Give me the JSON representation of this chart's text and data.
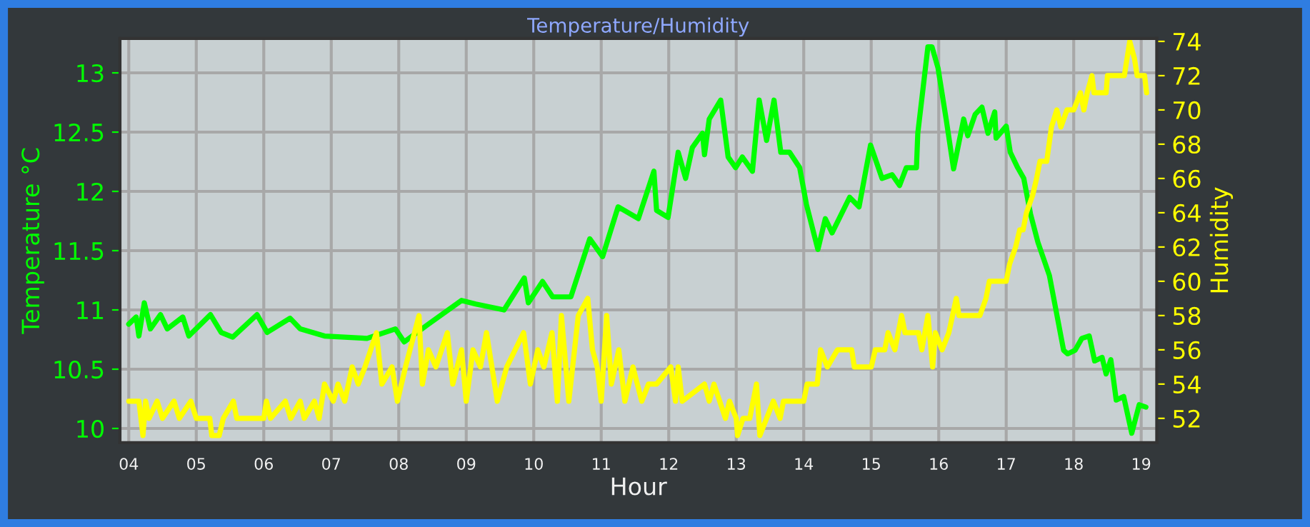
{
  "chart_data": {
    "type": "line",
    "title": "Temperature/Humidity",
    "xlabel": "Hour",
    "ylabel": "Temperature °C",
    "y2label": "Humidity",
    "xlim": [
      3.87,
      19.23
    ],
    "ylim": [
      9.88,
      13.29
    ],
    "y2lim": [
      50.58,
      74.17
    ],
    "xticks": [
      {
        "value": 4,
        "label": "04"
      },
      {
        "value": 5,
        "label": "05"
      },
      {
        "value": 6,
        "label": "06"
      },
      {
        "value": 7,
        "label": "07"
      },
      {
        "value": 8,
        "label": "08"
      },
      {
        "value": 9,
        "label": "09"
      },
      {
        "value": 10,
        "label": "10"
      },
      {
        "value": 11,
        "label": "11"
      },
      {
        "value": 12,
        "label": "12"
      },
      {
        "value": 13,
        "label": "13"
      },
      {
        "value": 14,
        "label": "14"
      },
      {
        "value": 15,
        "label": "15"
      },
      {
        "value": 16,
        "label": "16"
      },
      {
        "value": 17,
        "label": "17"
      },
      {
        "value": 18,
        "label": "18"
      },
      {
        "value": 19,
        "label": "19"
      }
    ],
    "yticks": [
      10,
      10.5,
      11,
      11.5,
      12,
      12.5,
      13
    ],
    "y2ticks": [
      52,
      54,
      56,
      58,
      60,
      62,
      64,
      66,
      68,
      70,
      72,
      74
    ],
    "grid": true,
    "marker": "none",
    "line_style": "solid",
    "series": [
      {
        "color": "#00ff00",
        "x": [
          4.0,
          4.11,
          4.15,
          4.23,
          4.32,
          4.47,
          4.57,
          4.8,
          4.89,
          5.21,
          5.37,
          5.54,
          5.9,
          6.05,
          6.39,
          6.54,
          6.9,
          7.53,
          7.95,
          8.08,
          8.44,
          8.93,
          9.14,
          9.56,
          9.86,
          9.92,
          10.13,
          10.28,
          10.55,
          10.83,
          11.02,
          11.25,
          11.55,
          11.78,
          11.82,
          11.99,
          12.14,
          12.25,
          12.35,
          12.5,
          12.53,
          12.6,
          12.77,
          12.88,
          12.99,
          13.09,
          13.24,
          13.34,
          13.45,
          13.56,
          13.66,
          13.79,
          13.94,
          14.04,
          14.21,
          14.32,
          14.42,
          14.68,
          14.82,
          14.99,
          15.16,
          15.31,
          15.42,
          15.52,
          15.67,
          15.69,
          15.84,
          15.9,
          15.99,
          16.11,
          16.22,
          16.37,
          16.43,
          16.54,
          16.64,
          16.73,
          16.83,
          16.85,
          17.0,
          17.06,
          17.17,
          17.26,
          17.36,
          17.47,
          17.64,
          17.74,
          17.85,
          17.91,
          18.02,
          18.12,
          18.23,
          18.31,
          18.42,
          18.48,
          18.55,
          18.63,
          18.74,
          18.86,
          18.97,
          19.07
        ],
        "values": [
          10.88,
          10.94,
          10.78,
          11.06,
          10.84,
          10.96,
          10.84,
          10.94,
          10.78,
          10.96,
          10.81,
          10.77,
          10.96,
          10.81,
          10.93,
          10.84,
          10.78,
          10.76,
          10.84,
          10.73,
          10.88,
          11.08,
          11.05,
          11.0,
          11.27,
          11.06,
          11.24,
          11.11,
          11.11,
          11.6,
          11.45,
          11.87,
          11.77,
          12.17,
          11.84,
          11.78,
          12.33,
          12.11,
          12.37,
          12.49,
          12.31,
          12.61,
          12.77,
          12.29,
          12.2,
          12.29,
          12.17,
          12.77,
          12.43,
          12.77,
          12.33,
          12.33,
          12.2,
          11.89,
          11.51,
          11.77,
          11.65,
          11.95,
          11.87,
          12.39,
          12.11,
          12.14,
          12.05,
          12.2,
          12.2,
          12.49,
          13.22,
          13.22,
          13.04,
          12.61,
          12.19,
          12.61,
          12.47,
          12.65,
          12.71,
          12.49,
          12.67,
          12.45,
          12.55,
          12.33,
          12.2,
          12.11,
          11.81,
          11.57,
          11.29,
          10.99,
          10.66,
          10.63,
          10.66,
          10.76,
          10.78,
          10.57,
          10.6,
          10.46,
          10.58,
          10.24,
          10.27,
          9.96,
          10.2,
          10.18
        ]
      },
      {
        "color": "#ffff00",
        "axis": "y2",
        "x": [
          4.0,
          4.15,
          4.21,
          4.25,
          4.3,
          4.42,
          4.5,
          4.67,
          4.75,
          4.92,
          5.0,
          5.2,
          5.23,
          5.34,
          5.4,
          5.55,
          5.6,
          6.0,
          6.04,
          6.1,
          6.32,
          6.4,
          6.54,
          6.6,
          6.75,
          6.82,
          6.9,
          7.03,
          7.1,
          7.2,
          7.31,
          7.4,
          7.5,
          7.67,
          7.75,
          7.9,
          7.98,
          8.1,
          8.3,
          8.35,
          8.44,
          8.55,
          8.72,
          8.8,
          8.93,
          9.0,
          9.1,
          9.21,
          9.3,
          9.46,
          9.6,
          9.85,
          9.95,
          10.06,
          10.15,
          10.27,
          10.35,
          10.41,
          10.52,
          10.66,
          10.8,
          10.87,
          10.94,
          11.0,
          11.08,
          11.15,
          11.26,
          11.35,
          11.47,
          11.6,
          11.7,
          11.82,
          12.03,
          12.1,
          12.14,
          12.2,
          12.53,
          12.6,
          12.67,
          12.84,
          12.9,
          13.0,
          13.02,
          13.1,
          13.2,
          13.3,
          13.35,
          13.45,
          13.55,
          13.65,
          13.7,
          14.0,
          14.05,
          14.2,
          14.25,
          14.35,
          14.5,
          14.71,
          14.75,
          15.0,
          15.06,
          15.2,
          15.25,
          15.35,
          15.45,
          15.5,
          15.7,
          15.75,
          15.84,
          15.91,
          15.95,
          16.05,
          16.15,
          16.26,
          16.3,
          16.61,
          16.7,
          16.75,
          17.0,
          17.05,
          17.14,
          17.2,
          17.25,
          17.3,
          17.39,
          17.45,
          17.5,
          17.6,
          17.67,
          17.75,
          17.81,
          17.9,
          18.0,
          18.1,
          18.15,
          18.2,
          18.27,
          18.3,
          18.48,
          18.5,
          18.62,
          18.75,
          18.83,
          18.9,
          18.94,
          19.05,
          19.08
        ],
        "values": [
          53,
          53,
          51,
          53,
          52,
          53,
          52,
          53,
          52,
          53,
          52,
          52,
          51,
          51,
          52,
          53,
          52,
          52,
          53,
          52,
          53,
          52,
          53,
          52,
          53,
          52,
          54,
          53,
          54,
          53,
          55,
          54,
          55,
          57,
          54,
          55,
          53,
          55,
          58,
          54,
          56,
          55,
          57,
          54,
          56,
          53,
          56,
          55,
          57,
          53,
          55,
          57,
          54,
          56,
          55,
          57,
          53,
          58,
          53,
          58,
          59,
          56,
          55,
          53,
          58,
          54,
          56,
          53,
          55,
          53,
          54,
          54,
          55,
          53,
          55,
          53,
          54,
          53,
          54,
          52,
          53,
          52,
          51,
          52,
          52,
          54,
          51,
          52,
          53,
          52,
          53,
          53,
          54,
          54,
          56,
          55,
          56,
          56,
          55,
          55,
          56,
          56,
          57,
          56,
          58,
          57,
          57,
          56,
          58,
          55,
          57,
          56,
          57,
          59,
          58,
          58,
          59,
          60,
          60,
          61,
          62,
          63,
          63,
          64,
          65,
          66,
          67,
          67,
          69,
          70,
          69,
          70,
          70,
          71,
          70,
          71,
          72,
          71,
          71,
          72,
          72,
          72,
          74,
          73,
          72,
          72,
          71
        ]
      }
    ]
  }
}
